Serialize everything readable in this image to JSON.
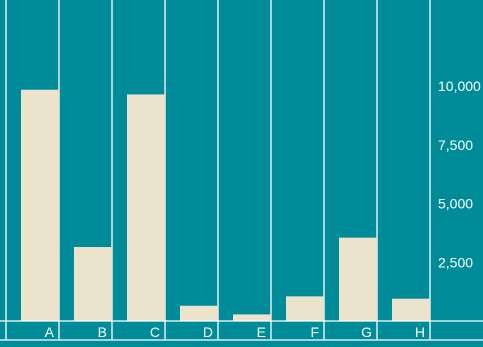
{
  "chart_data": {
    "type": "bar",
    "categories": [
      "A",
      "B",
      "C",
      "D",
      "E",
      "F",
      "G",
      "H"
    ],
    "values": [
      9850,
      3150,
      9650,
      650,
      280,
      1050,
      3550,
      950
    ],
    "ylim": [
      0,
      12500
    ],
    "yticks": [
      "2,500",
      "5,000",
      "7,500",
      "10,000"
    ],
    "ytick_values": [
      2500,
      5000,
      7500,
      10000
    ],
    "y_axis_position": "right",
    "grid": "vertical",
    "legend": "none",
    "colors": {
      "background": "#008b99",
      "bar": "#ebe3cb",
      "gridline": "#ffffff",
      "text": "#ffffff"
    }
  }
}
